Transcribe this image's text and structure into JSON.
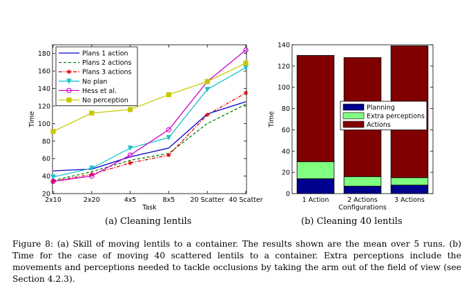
{
  "chart_data": [
    {
      "type": "line",
      "categories": [
        "2x10",
        "2x20",
        "4x5",
        "8x5",
        "20 Scatter",
        "40 Scatter"
      ],
      "xlabel": "Task",
      "ylabel": "Time",
      "ylim": [
        20,
        190
      ],
      "yticks": [
        20,
        40,
        60,
        80,
        100,
        120,
        140,
        160,
        180
      ],
      "legend_position": "top-left",
      "grid": false,
      "series": [
        {
          "name": "Plans 1 action",
          "color": "#0000cc",
          "dash": "solid",
          "marker": "none",
          "values": [
            46,
            48,
            62,
            72,
            111,
            125
          ]
        },
        {
          "name": "Plans 2 actions",
          "color": "#007a00",
          "dash": "dashed",
          "marker": "none",
          "values": [
            35,
            45,
            58,
            66,
            100,
            122
          ]
        },
        {
          "name": "Plans 3 actions",
          "color": "#e00000",
          "dash": "dashdot",
          "marker": "star",
          "values": [
            34,
            42,
            55,
            64,
            110,
            135
          ]
        },
        {
          "name": "No plan",
          "color": "#19c2c9",
          "dash": "solid",
          "marker": "triangle-down",
          "values": [
            39,
            49,
            72,
            84,
            139,
            164
          ]
        },
        {
          "name": "Hess et al.",
          "color": "#cc00cc",
          "dash": "solid",
          "marker": "circle",
          "values": [
            34,
            40,
            64,
            93,
            148,
            184
          ]
        },
        {
          "name": "No perception",
          "color": "#c8c800",
          "dash": "solid",
          "marker": "square",
          "values": [
            91,
            112,
            116,
            133,
            148,
            169
          ]
        }
      ]
    },
    {
      "type": "bar",
      "stacked": true,
      "categories": [
        "1 Action",
        "2 Actions",
        "3 Actions"
      ],
      "xlabel": "Configurations",
      "ylabel": "Time",
      "ylim": [
        0,
        140
      ],
      "yticks": [
        0,
        20,
        40,
        60,
        80,
        100,
        120,
        140
      ],
      "legend_position": "middle-right",
      "series": [
        {
          "name": "Planning",
          "color": "#00008f",
          "values": [
            14,
            7,
            8
          ]
        },
        {
          "name": "Extra perceptions",
          "color": "#80ff80",
          "values": [
            16,
            9,
            7
          ]
        },
        {
          "name": "Actions",
          "color": "#800000",
          "values": [
            100,
            112,
            124
          ]
        }
      ]
    }
  ],
  "subcaptions": {
    "a": "(a) Cleaning lentils",
    "b": "(b) Cleaning 40 lentils"
  },
  "caption": "Figure 8: (a) Skill of moving lentils to a container. The results shown are the mean over 5 runs. (b) Time for the case of moving 40 scattered lentils to a container. Extra perceptions include the movements and perceptions needed to tackle occlusions by taking the arm out of the field of view (see Section 4.2.3)."
}
